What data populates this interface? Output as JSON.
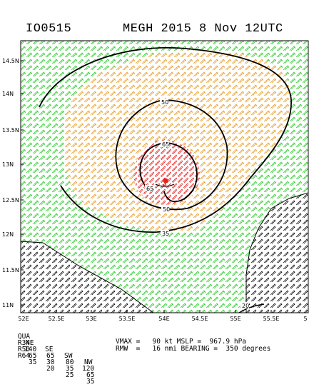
{
  "header": {
    "storm_id": "IO0515",
    "storm_title": "MEGH 2015  8 Nov 12UTC"
  },
  "map": {
    "lat_labels": [
      "14.5N",
      "14N",
      "13.5N",
      "13N",
      "12.5N",
      "12N",
      "11.5N",
      "11N"
    ],
    "lon_labels": [
      "52E",
      "52.5E",
      "53E",
      "53.5E",
      "54E",
      "54.5E",
      "55E",
      "55.5E",
      "5"
    ],
    "contour_labels": [
      "50",
      "65",
      "65",
      "50",
      "35",
      "20"
    ],
    "colors": {
      "r34": "#33cc33",
      "r50": "#e8a030",
      "r64": "#e82020",
      "land_barbs": "#000000",
      "coast": "#000000",
      "contour": "#000000"
    },
    "center_icon": "storm-center-icon"
  },
  "radii_table": {
    "header": [
      "QUA",
      "NE",
      "SE",
      "SW",
      "NW"
    ],
    "rows": [
      [
        "R34",
        "140",
        "65",
        "80",
        "120"
      ],
      [
        "R50",
        "65",
        "30",
        "35",
        "65"
      ],
      [
        "R64",
        "35",
        "20",
        "25",
        "35"
      ]
    ]
  },
  "intensity": {
    "line1": "VMAX =   90 kt MSLP =  967.9 hPa",
    "line2": "RMW  =   16 nmi BEARING =  350 degrees"
  }
}
